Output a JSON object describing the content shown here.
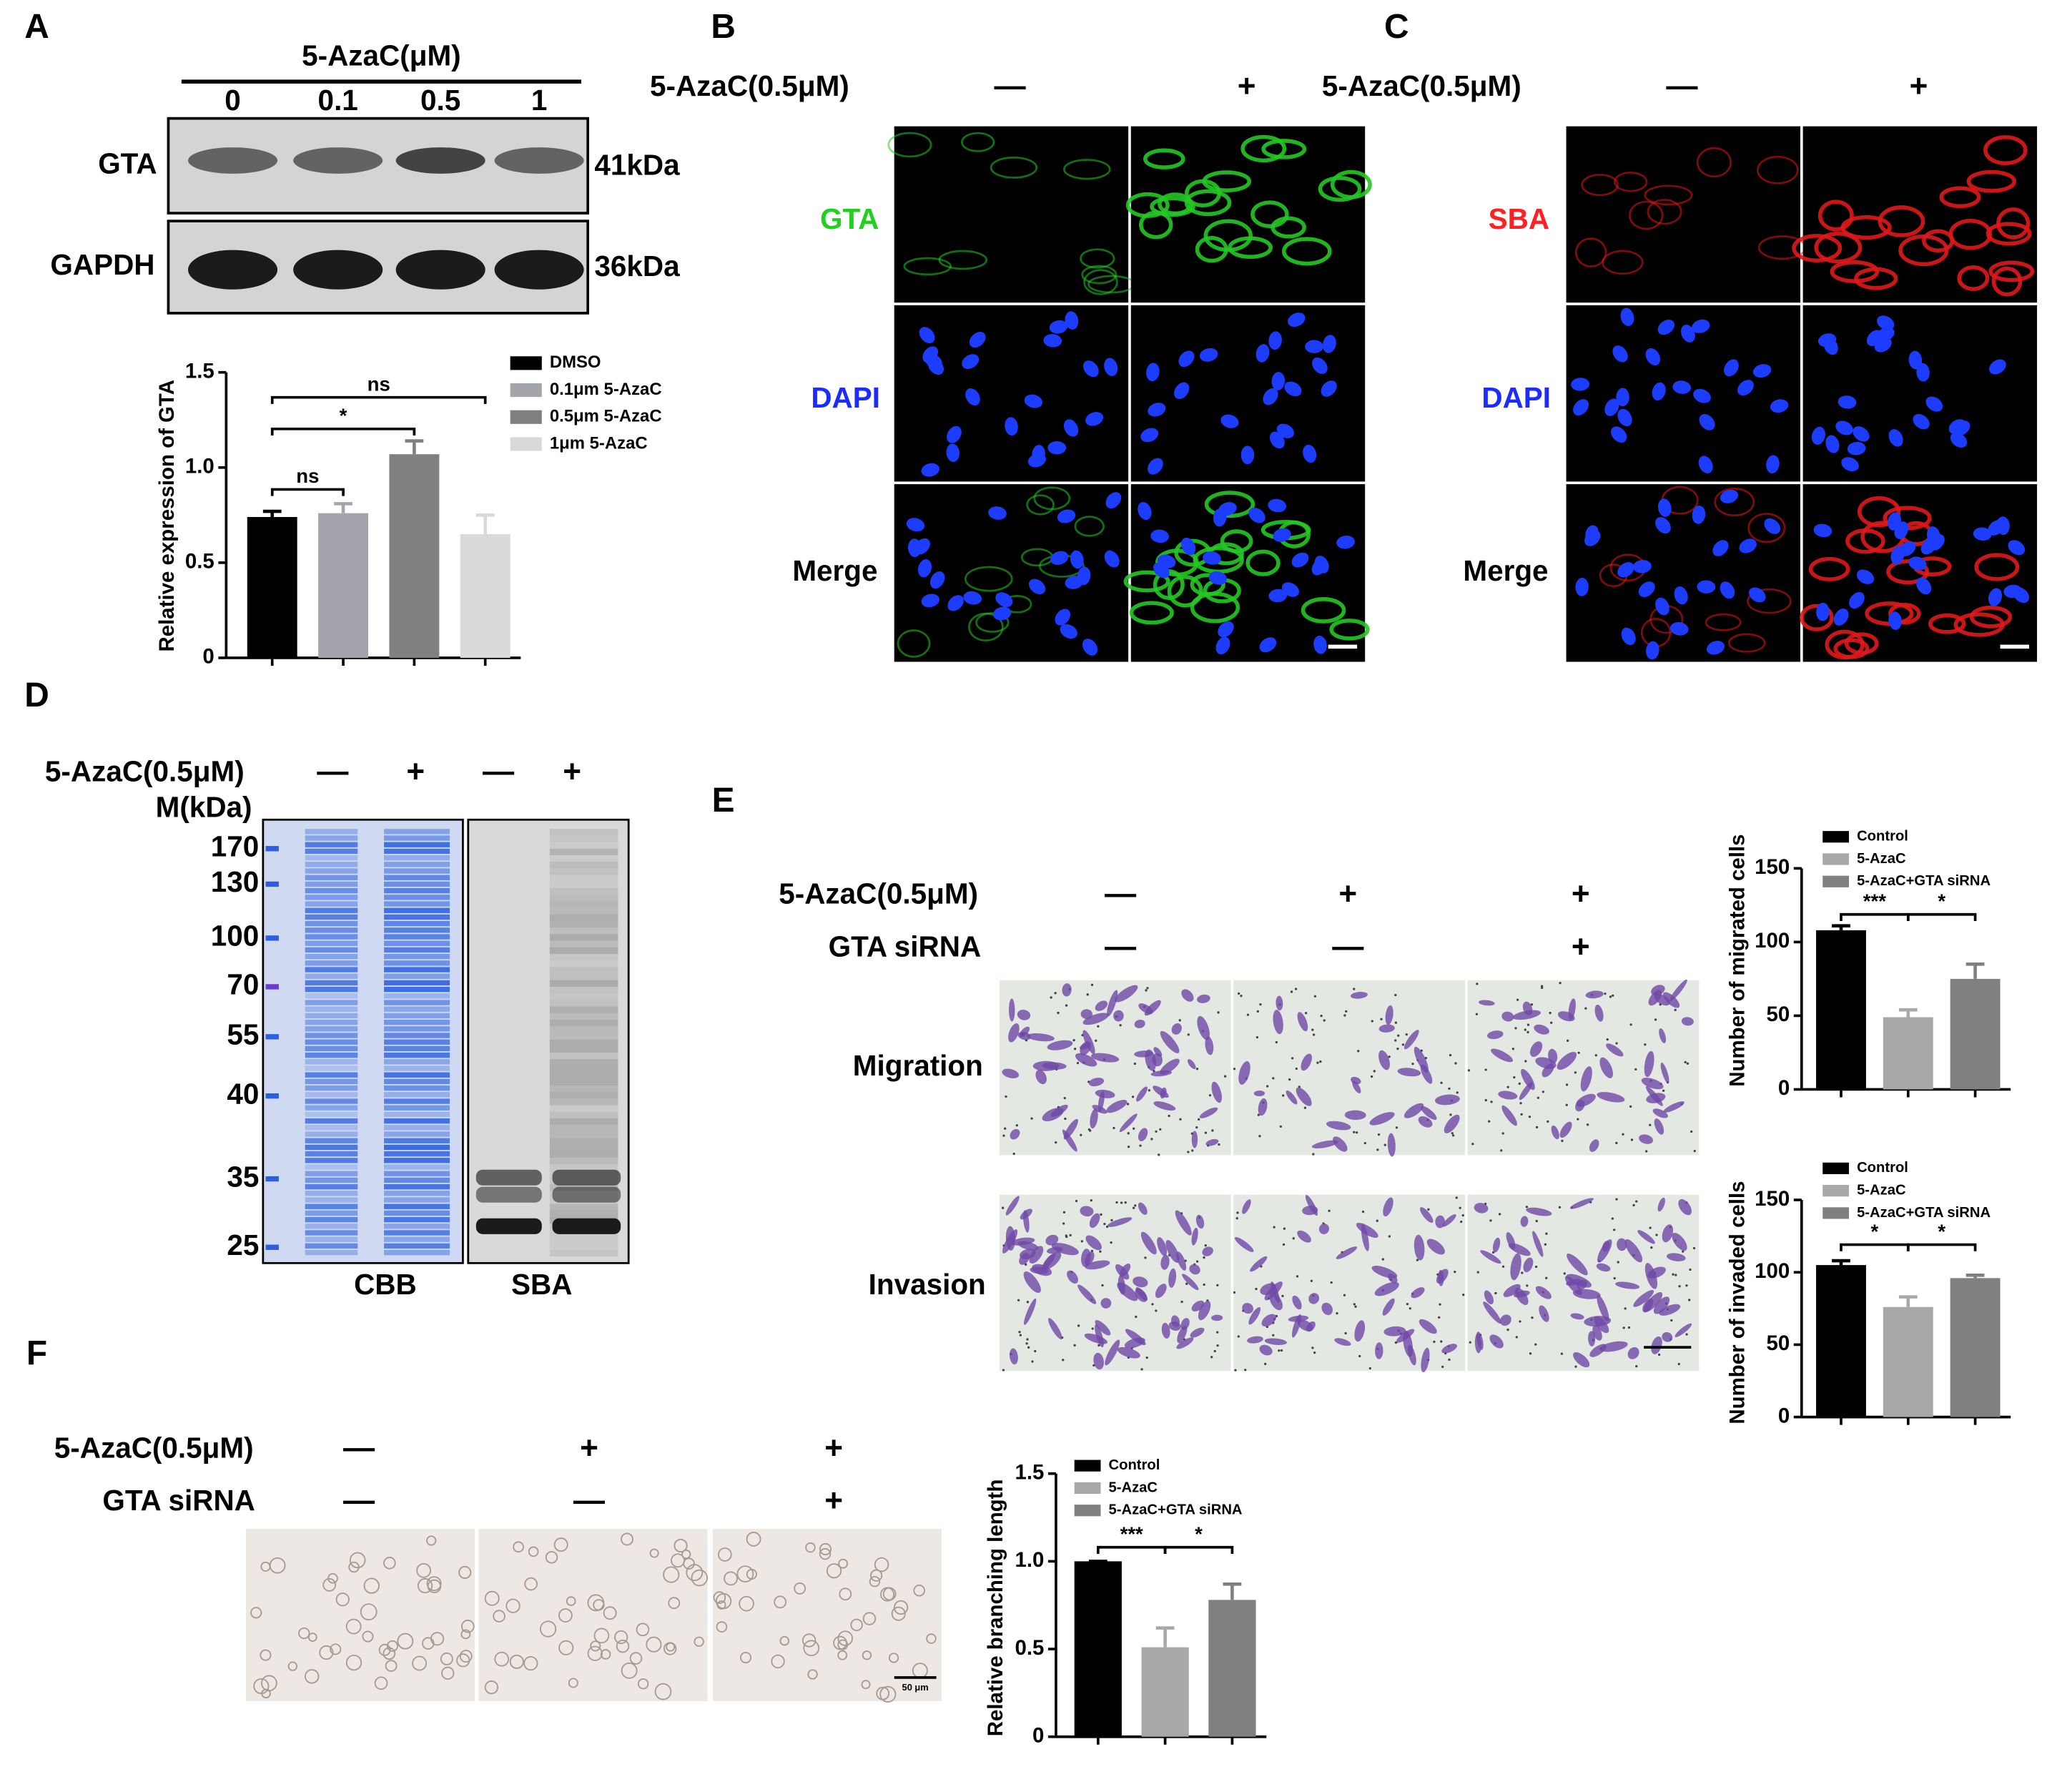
{
  "panels": {
    "a": {
      "label": "A",
      "treatment": "5-AzaC(μM)",
      "doses": [
        "0",
        "0.1",
        "0.5",
        "1"
      ],
      "blots": [
        {
          "name": "GTA",
          "size": "41kDa"
        },
        {
          "name": "GAPDH",
          "size": "36kDa"
        }
      ]
    },
    "b": {
      "label": "B",
      "treatment": "5-AzaC(0.5μM)",
      "signs": [
        "—",
        "+"
      ],
      "rows": [
        "GTA",
        "DAPI",
        "Merge"
      ]
    },
    "c": {
      "label": "C",
      "treatment": "5-AzaC(0.5μM)",
      "signs": [
        "—",
        "+"
      ],
      "rows": [
        "SBA",
        "DAPI",
        "Merge"
      ]
    },
    "d": {
      "label": "D",
      "treatment": "5-AzaC(0.5μM)",
      "signs": [
        "—",
        "+",
        "—",
        "+"
      ],
      "marker_title": "M(kDa)",
      "markers": [
        "170",
        "130",
        "100",
        "70",
        "55",
        "40",
        "35",
        "25"
      ],
      "lanes": [
        "CBB",
        "SBA"
      ]
    },
    "e": {
      "label": "E",
      "rows": [
        {
          "name": "5-AzaC(0.5μM)",
          "signs": [
            "—",
            "+",
            "+"
          ]
        },
        {
          "name": "GTA siRNA",
          "signs": [
            "—",
            "—",
            "+"
          ]
        }
      ],
      "assays": [
        "Migration",
        "Invasion"
      ]
    },
    "f": {
      "label": "F",
      "rows": [
        {
          "name": "5-AzaC(0.5μM)",
          "signs": [
            "—",
            "+",
            "+"
          ]
        },
        {
          "name": "GTA siRNA",
          "signs": [
            "—",
            "—",
            "+"
          ]
        }
      ],
      "scale_bar": "50 μm"
    }
  },
  "chart_data": [
    {
      "type": "bar",
      "y_label": "Relative expression of GTA",
      "ylim": [
        0,
        1.5
      ],
      "yticks": [
        0,
        0.5,
        {
          "value": 1,
          "label": "1.0"
        },
        1.5
      ],
      "legend": true,
      "series": [
        {
          "name": "DMSO",
          "color": "#000000",
          "values": [
            0.74
          ],
          "errors": [
            0.03
          ]
        },
        {
          "name": "0.1μm 5-AzaC",
          "color": "#a4a4ac",
          "values": [
            0.76
          ],
          "errors": [
            0.05
          ]
        },
        {
          "name": "0.5μm 5-AzaC",
          "color": "#808080",
          "values": [
            1.07
          ],
          "errors": [
            0.07
          ]
        },
        {
          "name": "1μm 5-AzaC",
          "color": "#d9d9d9",
          "values": [
            0.65
          ],
          "errors": [
            0.1
          ]
        }
      ],
      "annotations": [
        "ns",
        "*",
        "ns"
      ]
    },
    {
      "type": "bar",
      "y_label": "Number of migrated cells",
      "ylim": [
        0,
        150
      ],
      "yticks": [
        0,
        50,
        100,
        150
      ],
      "legend": true,
      "series": [
        {
          "name": "Control",
          "color": "#000000",
          "values": [
            108
          ],
          "errors": [
            3
          ]
        },
        {
          "name": "5-AzaC",
          "color": "#a8a8a8",
          "values": [
            49
          ],
          "errors": [
            5
          ]
        },
        {
          "name": "5-AzaC+GTA siRNA",
          "color": "#808080",
          "values": [
            75
          ],
          "errors": [
            10
          ]
        }
      ],
      "annotations": [
        "***",
        "*"
      ]
    },
    {
      "type": "bar",
      "y_label": "Number of invaded cells",
      "ylim": [
        0,
        150
      ],
      "yticks": [
        0,
        50,
        100,
        150
      ],
      "legend": true,
      "series": [
        {
          "name": "Control",
          "color": "#000000",
          "values": [
            105
          ],
          "errors": [
            3
          ]
        },
        {
          "name": "5-AzaC",
          "color": "#a8a8a8",
          "values": [
            76
          ],
          "errors": [
            7
          ]
        },
        {
          "name": "5-AzaC+GTA siRNA",
          "color": "#808080",
          "values": [
            96
          ],
          "errors": [
            2
          ]
        }
      ],
      "annotations": [
        "*",
        "*"
      ]
    },
    {
      "type": "bar",
      "y_label": "Relative branching length",
      "ylim": [
        0,
        1.5
      ],
      "yticks": [
        0,
        0.5,
        {
          "value": 1,
          "label": "1.0"
        },
        1.5
      ],
      "legend": true,
      "series": [
        {
          "name": "Control",
          "color": "#000000",
          "values": [
            1
          ],
          "errors": [
            0
          ]
        },
        {
          "name": "5-AzaC",
          "color": "#a8a8a8",
          "values": [
            0.51
          ],
          "errors": [
            0.11
          ]
        },
        {
          "name": "5-AzaC+GTA siRNA",
          "color": "#808080",
          "values": [
            0.78
          ],
          "errors": [
            0.09
          ]
        }
      ],
      "annotations": [
        "***",
        "*"
      ]
    }
  ]
}
